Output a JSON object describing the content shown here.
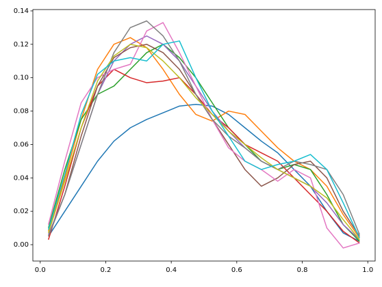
{
  "chart_data": {
    "type": "line",
    "x": [
      0.025,
      0.075,
      0.125,
      0.175,
      0.225,
      0.275,
      0.325,
      0.375,
      0.425,
      0.475,
      0.525,
      0.575,
      0.625,
      0.675,
      0.725,
      0.775,
      0.825,
      0.875,
      0.925,
      0.975
    ],
    "series": [
      {
        "color": "#1f77b4",
        "values": [
          0.005,
          0.02,
          0.035,
          0.05,
          0.062,
          0.07,
          0.075,
          0.079,
          0.083,
          0.084,
          0.083,
          0.078,
          0.07,
          0.062,
          0.055,
          0.045,
          0.035,
          0.02,
          0.007,
          0.002
        ]
      },
      {
        "color": "#ff7f0e",
        "values": [
          0.008,
          0.04,
          0.075,
          0.105,
          0.12,
          0.124,
          0.118,
          0.105,
          0.09,
          0.078,
          0.074,
          0.08,
          0.078,
          0.068,
          0.058,
          0.05,
          0.045,
          0.035,
          0.018,
          0.004
        ]
      },
      {
        "color": "#2ca02c",
        "values": [
          0.01,
          0.045,
          0.075,
          0.09,
          0.095,
          0.105,
          0.115,
          0.12,
          0.112,
          0.1,
          0.085,
          0.07,
          0.06,
          0.05,
          0.045,
          0.048,
          0.045,
          0.03,
          0.012,
          0.002
        ]
      },
      {
        "color": "#d62728",
        "values": [
          0.003,
          0.035,
          0.07,
          0.095,
          0.105,
          0.1,
          0.097,
          0.098,
          0.1,
          0.09,
          0.078,
          0.07,
          0.06,
          0.055,
          0.05,
          0.04,
          0.03,
          0.02,
          0.008,
          0.001
        ]
      },
      {
        "color": "#9467bd",
        "values": [
          0.006,
          0.03,
          0.06,
          0.09,
          0.11,
          0.12,
          0.125,
          0.12,
          0.11,
          0.095,
          0.08,
          0.068,
          0.058,
          0.05,
          0.045,
          0.04,
          0.035,
          0.025,
          0.012,
          0.003
        ]
      },
      {
        "color": "#8c564b",
        "values": [
          0.005,
          0.03,
          0.065,
          0.095,
          0.112,
          0.118,
          0.12,
          0.115,
          0.105,
          0.09,
          0.075,
          0.06,
          0.045,
          0.035,
          0.04,
          0.048,
          0.05,
          0.04,
          0.02,
          0.005
        ]
      },
      {
        "color": "#e377c2",
        "values": [
          0.012,
          0.05,
          0.085,
          0.1,
          0.105,
          0.108,
          0.128,
          0.133,
          0.115,
          0.095,
          0.075,
          0.058,
          0.05,
          0.045,
          0.038,
          0.045,
          0.04,
          0.01,
          -0.002,
          0.001
        ]
      },
      {
        "color": "#7f7f7f",
        "values": [
          0.005,
          0.03,
          0.06,
          0.09,
          0.115,
          0.13,
          0.134,
          0.125,
          0.11,
          0.09,
          0.075,
          0.065,
          0.058,
          0.05,
          0.045,
          0.05,
          0.048,
          0.045,
          0.03,
          0.006
        ]
      },
      {
        "color": "#bcbd22",
        "values": [
          0.007,
          0.038,
          0.07,
          0.098,
          0.113,
          0.12,
          0.118,
          0.11,
          0.1,
          0.088,
          0.078,
          0.068,
          0.06,
          0.052,
          0.045,
          0.04,
          0.035,
          0.028,
          0.015,
          0.003
        ]
      },
      {
        "color": "#17becf",
        "values": [
          0.009,
          0.042,
          0.078,
          0.102,
          0.11,
          0.112,
          0.11,
          0.12,
          0.122,
          0.1,
          0.08,
          0.065,
          0.05,
          0.045,
          0.048,
          0.05,
          0.054,
          0.045,
          0.025,
          0.004
        ]
      }
    ],
    "xlim": [
      -0.0225,
      1.0225
    ],
    "xticks": [
      {
        "value": 0,
        "label": "0.0"
      },
      {
        "value": 0.2,
        "label": "0.2"
      },
      {
        "value": 0.4,
        "label": "0.4"
      },
      {
        "value": 0.6,
        "label": "0.6"
      },
      {
        "value": 0.8,
        "label": "0.8"
      },
      {
        "value": 1,
        "label": "1.0"
      }
    ],
    "ylim": [
      -0.0098,
      0.1408
    ],
    "yticks": [
      {
        "value": 0,
        "label": "0.00"
      },
      {
        "value": 0.02,
        "label": "0.02"
      },
      {
        "value": 0.04,
        "label": "0.04"
      },
      {
        "value": 0.06,
        "label": "0.06"
      },
      {
        "value": 0.08,
        "label": "0.08"
      },
      {
        "value": 0.1,
        "label": "0.10"
      },
      {
        "value": 0.12,
        "label": "0.12"
      },
      {
        "value": 0.14,
        "label": "0.14"
      }
    ]
  }
}
